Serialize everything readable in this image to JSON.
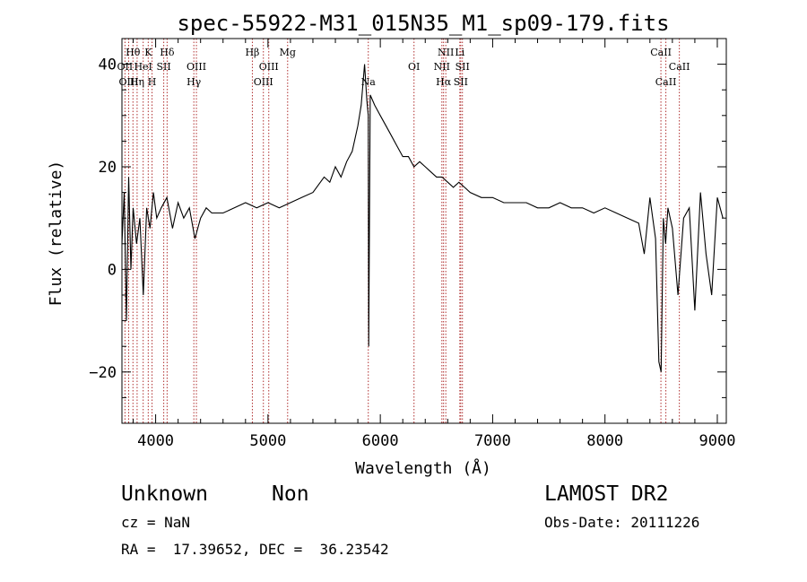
{
  "chart_data": {
    "type": "line",
    "title": "spec-55922-M31_015N35_M1_sp09-179.fits",
    "xlabel": "Wavelength (Å)",
    "ylabel": "Flux (relative)",
    "xlim": [
      3700,
      9080
    ],
    "ylim": [
      -30,
      45
    ],
    "xticks": [
      4000,
      5000,
      6000,
      7000,
      8000,
      9000
    ],
    "xtick_labels": [
      "4000",
      "5000",
      "6000",
      "7000",
      "8000",
      "9000"
    ],
    "yticks": [
      -20,
      0,
      20,
      40
    ],
    "ytick_labels": [
      "−20",
      "0",
      "20",
      "40"
    ],
    "grid": false,
    "spectrum": {
      "x": [
        3700,
        3720,
        3740,
        3760,
        3780,
        3800,
        3830,
        3860,
        3890,
        3920,
        3950,
        3980,
        4010,
        4050,
        4100,
        4150,
        4200,
        4250,
        4300,
        4350,
        4400,
        4450,
        4500,
        4600,
        4700,
        4800,
        4900,
        5000,
        5100,
        5200,
        5300,
        5400,
        5500,
        5550,
        5600,
        5650,
        5700,
        5750,
        5800,
        5830,
        5860,
        5880,
        5893,
        5897,
        5910,
        5950,
        6000,
        6050,
        6100,
        6150,
        6200,
        6250,
        6300,
        6350,
        6400,
        6450,
        6500,
        6550,
        6600,
        6650,
        6700,
        6750,
        6800,
        6900,
        7000,
        7100,
        7200,
        7300,
        7400,
        7500,
        7600,
        7700,
        7800,
        7900,
        8000,
        8100,
        8200,
        8300,
        8350,
        8400,
        8450,
        8480,
        8500,
        8520,
        8540,
        8560,
        8600,
        8650,
        8700,
        8750,
        8800,
        8850,
        8900,
        8950,
        9000,
        9050
      ],
      "y": [
        5,
        15,
        -10,
        18,
        0,
        12,
        5,
        10,
        -5,
        12,
        8,
        15,
        10,
        12,
        14,
        8,
        13,
        10,
        12,
        6,
        10,
        12,
        11,
        11,
        12,
        13,
        12,
        13,
        12,
        13,
        14,
        15,
        18,
        17,
        20,
        18,
        21,
        23,
        28,
        32,
        40,
        33,
        30,
        -15,
        34,
        32,
        30,
        28,
        26,
        24,
        22,
        22,
        20,
        21,
        20,
        19,
        18,
        18,
        17,
        16,
        17,
        16,
        15,
        14,
        14,
        13,
        13,
        13,
        12,
        12,
        13,
        12,
        12,
        11,
        12,
        11,
        10,
        9,
        3,
        14,
        6,
        -18,
        -20,
        10,
        5,
        12,
        8,
        -5,
        10,
        12,
        -8,
        15,
        3,
        -5,
        14,
        10
      ]
    },
    "line_markers": [
      {
        "label": "Hθ",
        "row": 1,
        "x": 3798
      },
      {
        "label": "K",
        "row": 1,
        "x": 3934
      },
      {
        "label": "Hδ",
        "row": 1,
        "x": 4102
      },
      {
        "label": "Hβ",
        "row": 1,
        "x": 4861
      },
      {
        "label": "Mg",
        "row": 1,
        "x": 5175
      },
      {
        "label": "NII",
        "row": 1,
        "x": 6583
      },
      {
        "label": "Li",
        "row": 1,
        "x": 6708
      },
      {
        "label": "CaII",
        "row": 1,
        "x": 8498
      },
      {
        "label": "OII",
        "row": 2,
        "x": 3727
      },
      {
        "label": "HeI",
        "row": 2,
        "x": 3889
      },
      {
        "label": "SII",
        "row": 2,
        "x": 4072
      },
      {
        "label": "OIII",
        "row": 2,
        "x": 4363
      },
      {
        "label": "OIII",
        "row": 2,
        "x": 5007
      },
      {
        "label": "OI",
        "row": 2,
        "x": 6300
      },
      {
        "label": "NII",
        "row": 2,
        "x": 6548
      },
      {
        "label": "SII",
        "row": 2,
        "x": 6731
      },
      {
        "label": "CaII",
        "row": 2,
        "x": 8662
      },
      {
        "label": "OIII",
        "row": 3,
        "x": 3760
      },
      {
        "label": "Hη",
        "row": 3,
        "x": 3835
      },
      {
        "label": "H",
        "row": 3,
        "x": 3968
      },
      {
        "label": "Hγ",
        "row": 3,
        "x": 4340
      },
      {
        "label": "OIII",
        "row": 3,
        "x": 4959
      },
      {
        "label": "Na",
        "row": 3,
        "x": 5893
      },
      {
        "label": "Hα",
        "row": 3,
        "x": 6563
      },
      {
        "label": "SII",
        "row": 3,
        "x": 6716
      },
      {
        "label": "CaII",
        "row": 3,
        "x": 8542
      }
    ],
    "marker_color": "#b03030",
    "line_color": "#000000"
  },
  "info": {
    "class_label": "Unknown",
    "subclass_label": "Non",
    "cz": "cz = NaN",
    "coords": "RA =  17.39652, DEC =  36.23542",
    "survey": "LAMOST DR2",
    "obs_date": "Obs-Date: 20111226"
  }
}
